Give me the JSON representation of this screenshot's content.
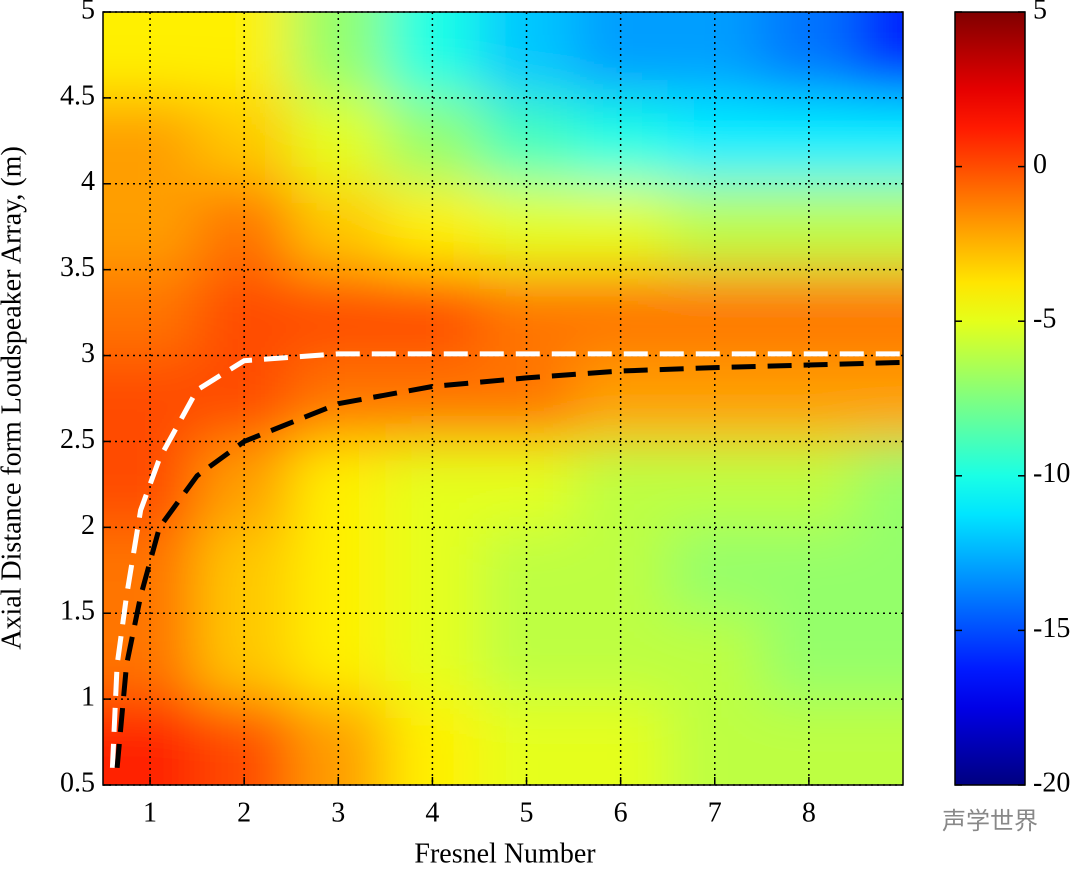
{
  "chart_data": {
    "type": "heatmap",
    "xlabel": "Fresnel Number",
    "ylabel": "Axial Distance form Loudspeaker Array, (m)",
    "xlim": [
      0.5,
      9
    ],
    "xticks": [
      1,
      2,
      3,
      4,
      5,
      6,
      7,
      8
    ],
    "ylim": [
      0.5,
      5
    ],
    "yticks": [
      0.5,
      1,
      1.5,
      2,
      2.5,
      3,
      3.5,
      4,
      4.5,
      5
    ],
    "grid": true,
    "colormap": "jet",
    "clim": [
      -20,
      5
    ],
    "cticks": [
      -20,
      -15,
      -10,
      -5,
      0,
      5
    ],
    "xbins": [
      0.5,
      1.5,
      2.5,
      3.5,
      4.5,
      5.5,
      6.5,
      7.5,
      8.5,
      9
    ],
    "ybins": [
      0.5,
      1,
      1.5,
      2,
      2.5,
      3,
      3.5,
      4,
      4.5,
      5
    ],
    "z": [
      [
        1,
        0,
        -2,
        -4,
        -5,
        -5,
        -6,
        -6,
        -6
      ],
      [
        -1,
        -3,
        -4,
        -5,
        -6,
        -6,
        -6,
        -7,
        -7
      ],
      [
        -1,
        -3,
        -4,
        -5,
        -6,
        -6,
        -7,
        -7,
        -7
      ],
      [
        0,
        -2,
        -4,
        -5,
        -5,
        -6,
        -6,
        -6,
        -7
      ],
      [
        0,
        0,
        -1,
        -1,
        -1,
        -2,
        -2,
        -2,
        -2
      ],
      [
        -1,
        0,
        0,
        0,
        -1,
        -1,
        -1,
        -1,
        -1
      ],
      [
        -2,
        -1,
        -3,
        -4,
        -5,
        -5,
        -6,
        -6,
        -6
      ],
      [
        -2,
        -3,
        -5,
        -7,
        -9,
        -10,
        -11,
        -11,
        -11
      ],
      [
        -4,
        -4,
        -7,
        -10,
        -12,
        -13,
        -13,
        -14,
        -16
      ]
    ],
    "lines": [
      {
        "color": "#ffffff",
        "x": [
          0.6,
          0.65,
          0.75,
          0.9,
          1.1,
          1.5,
          2,
          3,
          9
        ],
        "y": [
          0.6,
          1.2,
          1.6,
          2.1,
          2.4,
          2.8,
          2.97,
          3.01,
          3.01
        ]
      },
      {
        "color": "#000000",
        "x": [
          0.65,
          0.75,
          0.9,
          1.1,
          1.5,
          2,
          3,
          4,
          5,
          6,
          7,
          9
        ],
        "y": [
          0.6,
          1.2,
          1.6,
          2.0,
          2.3,
          2.5,
          2.72,
          2.82,
          2.87,
          2.91,
          2.93,
          2.96
        ]
      }
    ],
    "watermark": "声学世界"
  }
}
